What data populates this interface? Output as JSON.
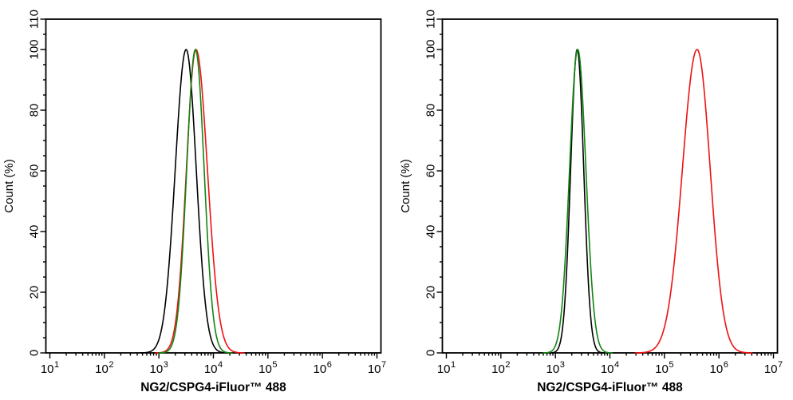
{
  "figure": {
    "background_color": "#ffffff",
    "axis_color": "#000000",
    "description": "Two flow cytometry overlay histograms side by side"
  },
  "chart_data": [
    {
      "id": "left",
      "type": "line",
      "title": "",
      "xlabel": "NG2/CSPG4-iFluor™ 488",
      "ylabel": "Count  (%)",
      "x_scale": "log10",
      "xlim": [
        10,
        10000000
      ],
      "x_tick_exponents": [
        1,
        2,
        3,
        4,
        5,
        6,
        7
      ],
      "x_tick_labels": [
        "10^1",
        "10^2",
        "10^3",
        "10^4",
        "10^5",
        "10^6",
        "10^7"
      ],
      "x_minor_ticks": "log decades k=2..9",
      "ylim": [
        0,
        110
      ],
      "y_major_ticks": [
        0,
        20,
        40,
        60,
        80,
        100,
        110
      ],
      "y_minor_tick_step": 5,
      "grid": "off",
      "legend": "none",
      "series": [
        {
          "name": "black",
          "color": "#000000",
          "curve": "asymmetric-gaussian-log10",
          "peak": {
            "x": 3200,
            "y": 100
          },
          "log10_mu": 3.5,
          "log10_sigma_left": 0.2,
          "log10_sigma_right": 0.185,
          "approx_range_x": [
            500,
            15000
          ]
        },
        {
          "name": "red",
          "color": "#ee1111",
          "curve": "asymmetric-gaussian-log10",
          "peak": {
            "x": 4800,
            "y": 100
          },
          "log10_mu": 3.68,
          "log10_sigma_left": 0.175,
          "log10_sigma_right": 0.21,
          "approx_range_x": [
            900,
            40000
          ]
        },
        {
          "name": "green",
          "color": "#128412",
          "curve": "asymmetric-gaussian-log10",
          "peak": {
            "x": 4700,
            "y": 100
          },
          "log10_mu": 3.67,
          "log10_sigma_left": 0.16,
          "log10_sigma_right": 0.16,
          "approx_range_x": [
            1000,
            22000
          ]
        }
      ]
    },
    {
      "id": "right",
      "type": "line",
      "title": "",
      "xlabel": "NG2/CSPG4-iFluor™ 488",
      "ylabel": "Count  (%)",
      "x_scale": "log10",
      "xlim": [
        10,
        10000000
      ],
      "x_tick_exponents": [
        1,
        2,
        3,
        4,
        5,
        6,
        7
      ],
      "x_tick_labels": [
        "10^1",
        "10^2",
        "10^3",
        "10^4",
        "10^5",
        "10^6",
        "10^7"
      ],
      "x_minor_ticks": "log decades k=2..9",
      "ylim": [
        0,
        110
      ],
      "y_major_ticks": [
        0,
        20,
        40,
        60,
        80,
        100,
        110
      ],
      "y_minor_tick_step": 5,
      "grid": "off",
      "legend": "none",
      "series": [
        {
          "name": "black",
          "color": "#000000",
          "curve": "asymmetric-gaussian-log10",
          "peak": {
            "x": 2500,
            "y": 100
          },
          "log10_mu": 3.4,
          "log10_sigma_left": 0.12,
          "log10_sigma_right": 0.12,
          "approx_range_x": [
            1000,
            6500
          ]
        },
        {
          "name": "red",
          "color": "#ee1111",
          "curve": "asymmetric-gaussian-log10",
          "peak": {
            "x": 400000,
            "y": 100
          },
          "log10_mu": 5.6,
          "log10_sigma_left": 0.27,
          "log10_sigma_right": 0.24,
          "approx_range_x": [
            65000,
            1900000
          ]
        },
        {
          "name": "green",
          "color": "#128412",
          "curve": "asymmetric-gaussian-log10",
          "peak": {
            "x": 2600,
            "y": 100
          },
          "log10_mu": 3.41,
          "log10_sigma_left": 0.15,
          "log10_sigma_right": 0.15,
          "approx_range_x": [
            900,
            8000
          ]
        }
      ]
    }
  ]
}
